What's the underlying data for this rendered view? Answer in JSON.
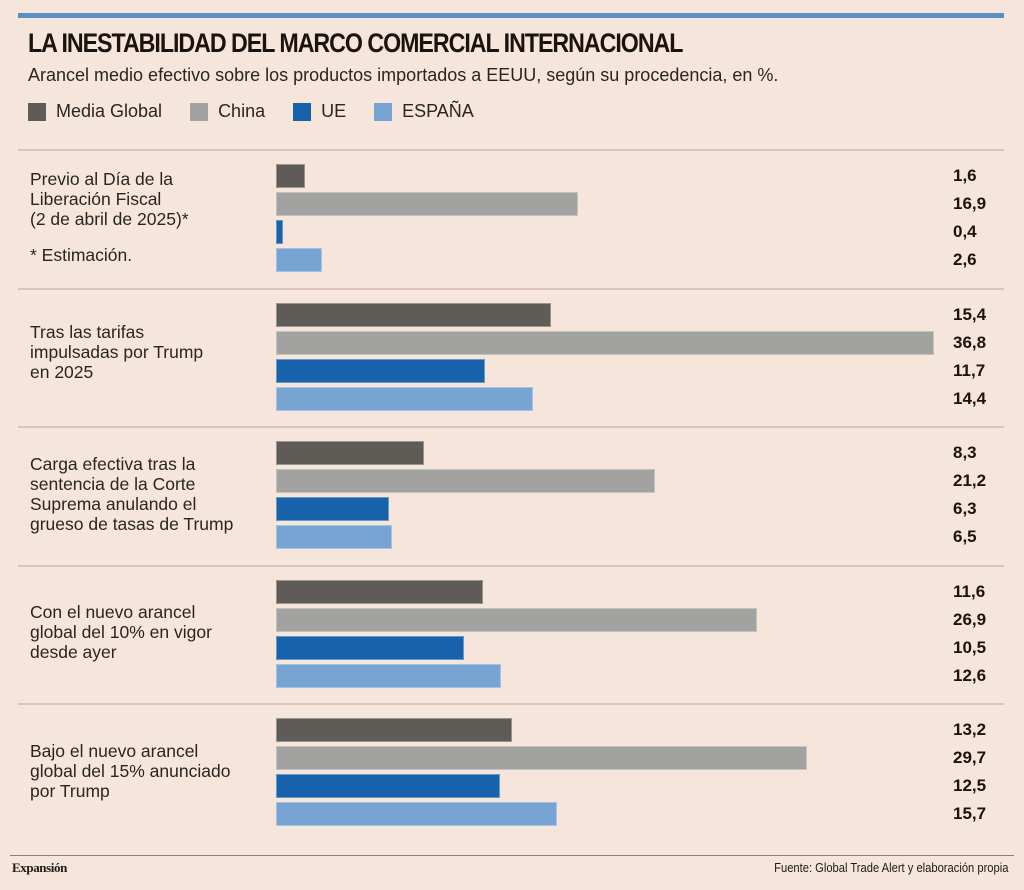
{
  "header": {
    "title": "LA INESTABILIDAD DEL MARCO COMERCIAL INTERNACIONAL",
    "subtitle": "Arancel medio efectivo sobre los productos importados a EEUU, según su procedencia, en %."
  },
  "footer": {
    "brand": "Expansión",
    "source": "Fuente: Global Trade Alert y elaboración propia"
  },
  "chart_data": {
    "type": "bar",
    "orientation": "horizontal",
    "title": "LA INESTABILIDAD DEL MARCO COMERCIAL INTERNACIONAL",
    "subtitle": "Arancel medio efectivo sobre los productos importados a EEUU, según su procedencia, en %.",
    "xlabel": "",
    "ylabel": "",
    "xlim": [
      0,
      36.8
    ],
    "grid": false,
    "legend_position": "top-left",
    "categories": [
      "Previo al Día de la Liberación Fiscal (2 de abril de 2025)*",
      "Tras las tarifas impulsadas por Trump en 2025",
      "Carga efectiva tras la sentencia de la Corte Suprema anulando el grueso de tasas de Trump",
      "Con el nuevo arancel global del 10% en vigor desde ayer",
      "Bajo el nuevo arancel global del 15% anunciado por Trump"
    ],
    "category_lines": [
      [
        "Previo al Día de la",
        "Liberación Fiscal",
        "(2 de abril de 2025)*",
        "",
        "* Estimación."
      ],
      [
        "Tras las tarifas",
        "impulsadas por Trump",
        "en 2025"
      ],
      [
        "Carga efectiva tras la",
        "sentencia de la Corte",
        "Suprema anulando el",
        "grueso de tasas de Trump"
      ],
      [
        "Con el nuevo arancel",
        "global del 10% en vigor",
        "desde ayer"
      ],
      [
        "Bajo el nuevo arancel",
        "global del 15% anunciado",
        "por Trump"
      ]
    ],
    "annotation": "* Estimación.",
    "series": [
      {
        "name": "Media Global",
        "color": "#5f5c57",
        "values": [
          1.6,
          15.4,
          8.3,
          11.6,
          13.2
        ],
        "labels": [
          "1,6",
          "15,4",
          "8,3",
          "11,6",
          "13,2"
        ]
      },
      {
        "name": "China",
        "color": "#a2a2a0",
        "values": [
          16.9,
          36.8,
          21.2,
          26.9,
          29.7
        ],
        "labels": [
          "16,9",
          "36,8",
          "21,2",
          "26,9",
          "29,7"
        ]
      },
      {
        "name": "UE",
        "color": "#1862ac",
        "values": [
          0.4,
          11.7,
          6.3,
          10.5,
          12.5
        ],
        "labels": [
          "0,4",
          "11,7",
          "6,3",
          "10,5",
          "12,5"
        ]
      },
      {
        "name": "ESPAÑA",
        "color": "#77a4d3",
        "values": [
          2.6,
          14.4,
          6.5,
          12.6,
          15.7
        ],
        "labels": [
          "2,6",
          "14,4",
          "6,5",
          "12,6",
          "15,7"
        ]
      }
    ]
  }
}
